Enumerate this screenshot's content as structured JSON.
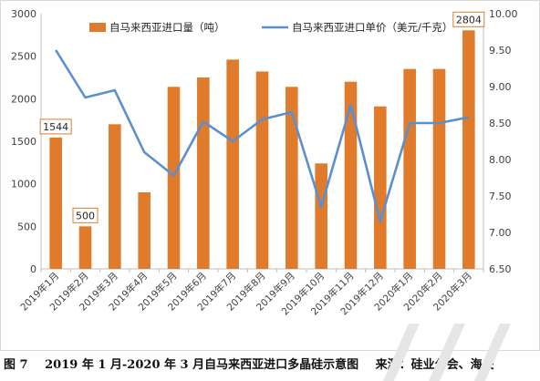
{
  "chart_data": {
    "type": "bar+line",
    "categories": [
      "2019年1月",
      "2019年2月",
      "2019年3月",
      "2019年4月",
      "2019年5月",
      "2019年6月",
      "2019年7月",
      "2019年8月",
      "2019年9月",
      "2019年10月",
      "2019年11月",
      "2019年12月",
      "2020年1月",
      "2020年2月",
      "2020年3月"
    ],
    "series": [
      {
        "name": "自马来西亚进口量（吨）",
        "type": "bar",
        "axis": "left",
        "color": "#E07B2C",
        "values": [
          1544,
          500,
          1700,
          900,
          2140,
          2250,
          2460,
          2320,
          2140,
          1240,
          2200,
          1910,
          2350,
          2350,
          2804
        ]
      },
      {
        "name": "自马来西亚进口单价（美元/千克）",
        "type": "line",
        "axis": "right",
        "color": "#5B8FD0",
        "values": [
          9.5,
          8.85,
          8.95,
          8.1,
          7.78,
          8.52,
          8.25,
          8.55,
          8.65,
          7.35,
          8.75,
          7.15,
          8.5,
          8.5,
          8.58
        ]
      }
    ],
    "y_left": {
      "min": 0,
      "max": 3000,
      "ticks": [
        "0",
        "500",
        "1000",
        "1500",
        "2000",
        "2500",
        "3000"
      ]
    },
    "y_right": {
      "min": 6.5,
      "max": 10.0,
      "ticks": [
        "6.50",
        "7.00",
        "7.50",
        "8.00",
        "8.50",
        "9.00",
        "9.50",
        "10.00"
      ]
    },
    "data_labels": [
      {
        "index": 0,
        "text": "1544"
      },
      {
        "index": 1,
        "text": "500"
      },
      {
        "index": 14,
        "text": "2804"
      }
    ],
    "legend": "top",
    "grid": false
  },
  "caption": {
    "figure": "图 7",
    "title": "2019 年 1 月-2020 年 3 月自马来西亚进口多晶硅示意图",
    "source": "来源：硅业分会、海关"
  }
}
